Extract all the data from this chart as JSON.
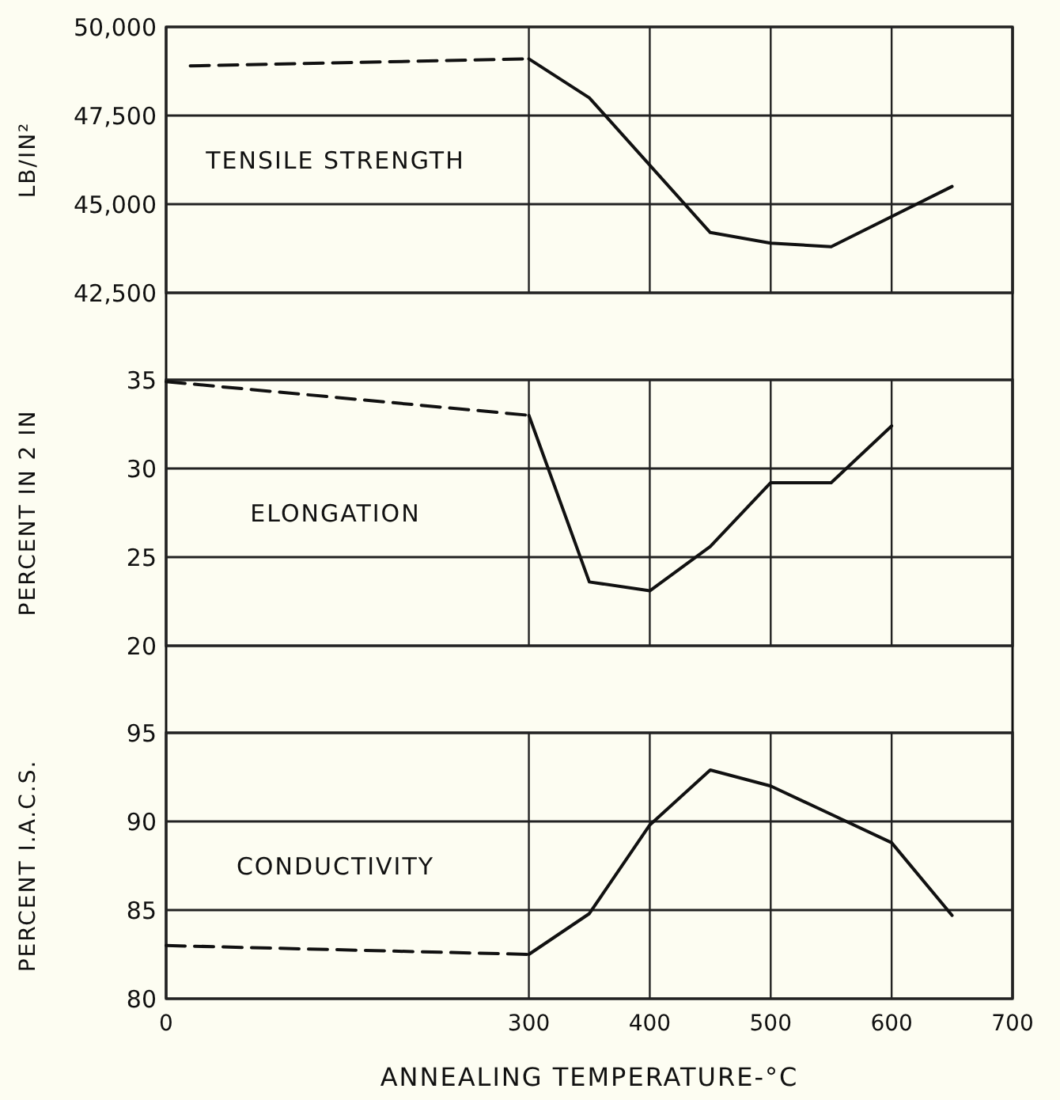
{
  "chart_data": [
    {
      "type": "line",
      "ylabel": "LB/IN²",
      "xlim": [
        0,
        700
      ],
      "xticks": [
        0,
        300,
        400,
        500,
        600,
        700
      ],
      "ylim": [
        42500,
        50000
      ],
      "yticks": [
        {
          "value": 42500,
          "label": "42,500"
        },
        {
          "value": 45000,
          "label": "45,000"
        },
        {
          "value": 47500,
          "label": "47,500"
        },
        {
          "value": 50000,
          "label": "50,000"
        }
      ],
      "grid": true,
      "tick_labels": "y",
      "series": [
        {
          "color": "#111111",
          "line_style": "dashed",
          "x": [
            20,
            300
          ],
          "values": [
            48900,
            49100
          ]
        },
        {
          "color": "#111111",
          "line_style": "solid",
          "x": [
            300,
            350,
            450,
            500,
            550,
            650
          ],
          "values": [
            49100,
            48000,
            44200,
            43900,
            43800,
            45500
          ]
        }
      ],
      "annotations": [
        "TENSILE STRENGTH"
      ]
    },
    {
      "type": "line",
      "ylabel": "PERCENT IN 2 IN",
      "xlim": [
        0,
        700
      ],
      "xticks": [
        0,
        300,
        400,
        500,
        600,
        700
      ],
      "ylim": [
        20,
        35
      ],
      "yticks": [
        20,
        25,
        30,
        35
      ],
      "grid": true,
      "tick_labels": "y",
      "series": [
        {
          "color": "#111111",
          "line_style": "dashed",
          "x": [
            0,
            300
          ],
          "values": [
            34.9,
            33.0
          ]
        },
        {
          "color": "#111111",
          "line_style": "solid",
          "x": [
            300,
            350,
            400,
            450,
            500,
            550,
            600
          ],
          "values": [
            33.0,
            23.6,
            23.1,
            25.6,
            29.2,
            29.2,
            32.4
          ]
        }
      ],
      "annotations": [
        "ELONGATION"
      ]
    },
    {
      "type": "line",
      "ylabel": "PERCENT I.A.C.S.",
      "xlabel": "ANNEALING TEMPERATURE-°C",
      "xlim": [
        0,
        700
      ],
      "xticks": [
        0,
        300,
        400,
        500,
        600,
        700
      ],
      "ylim": [
        80,
        95
      ],
      "yticks": [
        80,
        85,
        90,
        95
      ],
      "grid": true,
      "series": [
        {
          "color": "#111111",
          "line_style": "dashed",
          "x": [
            0,
            300
          ],
          "values": [
            83.0,
            82.5
          ]
        },
        {
          "color": "#111111",
          "line_style": "solid",
          "x": [
            300,
            350,
            400,
            450,
            500,
            550,
            600,
            650
          ],
          "values": [
            82.5,
            84.8,
            89.8,
            92.9,
            92.0,
            90.4,
            88.8,
            84.7
          ]
        }
      ],
      "annotations": [
        "CONDUCTIVITY"
      ]
    }
  ]
}
